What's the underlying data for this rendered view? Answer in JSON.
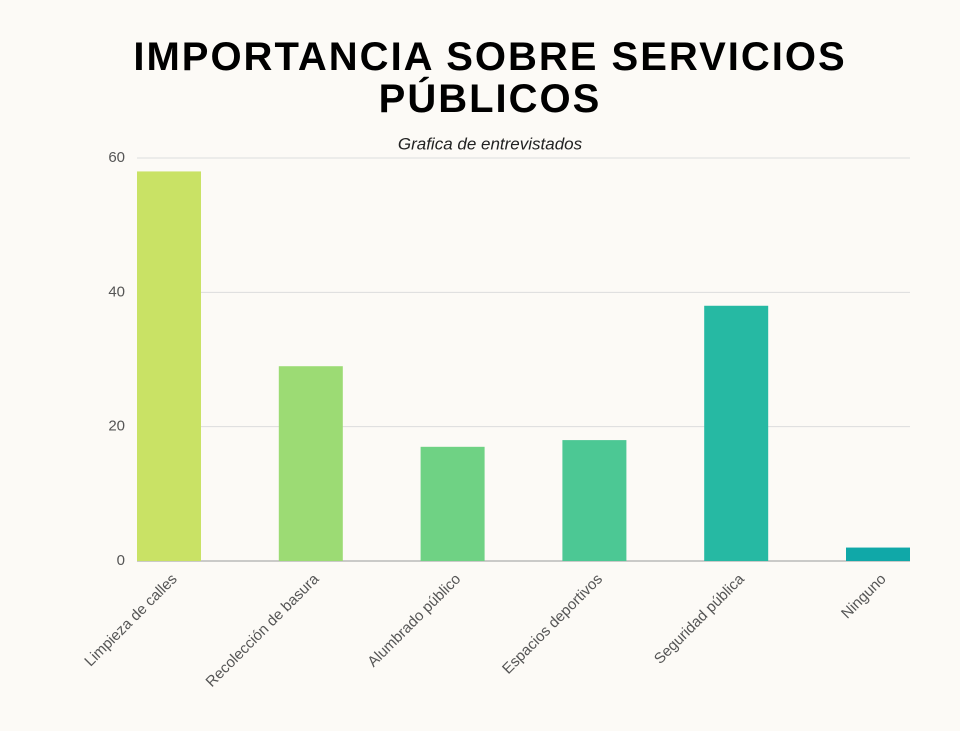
{
  "chart_data": {
    "type": "bar",
    "title": "IMPORTANCIA SOBRE SERVICIOS PÚBLICOS",
    "subtitle": "Grafica de entrevistados",
    "categories": [
      "Limpieza de calles",
      "Recolección de basura",
      "Alumbrado público",
      "Espacios deportivos",
      "Seguridad pública",
      "Ninguno"
    ],
    "values": [
      58,
      29,
      17,
      18,
      38,
      2
    ],
    "colors": [
      "#c9e265",
      "#9cdb74",
      "#6fd284",
      "#4cc894",
      "#26b9a3",
      "#10a8a8"
    ],
    "ylim": [
      0,
      60
    ],
    "yticks": [
      0,
      20,
      40,
      60
    ],
    "grid": true
  }
}
